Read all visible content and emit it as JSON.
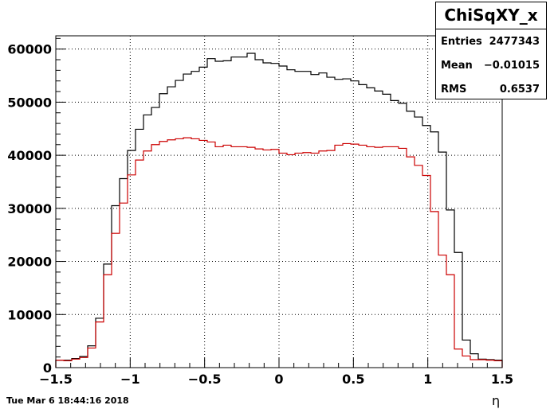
{
  "chart_data": {
    "type": "histogram",
    "title": "ChiSqXY_x",
    "xlabel": "η",
    "ylabel": "",
    "xlim": [
      -1.5,
      1.5
    ],
    "ylim": [
      0,
      62500
    ],
    "grid": true,
    "bin_width": 0.05,
    "x_ticks": [
      "−1.5",
      "−1",
      "−0.5",
      "0",
      "0.5",
      "1",
      "1.5"
    ],
    "x_tick_values": [
      -1.5,
      -1,
      -0.5,
      0,
      0.5,
      1,
      1.5
    ],
    "y_ticks": [
      "0",
      "10000",
      "20000",
      "30000",
      "40000",
      "50000",
      "60000"
    ],
    "y_tick_values": [
      0,
      10000,
      20000,
      30000,
      40000,
      50000,
      60000
    ],
    "series": [
      {
        "color": "#000000",
        "values": [
          1400,
          1400,
          1700,
          2100,
          4100,
          9300,
          19500,
          30500,
          35600,
          40900,
          44900,
          47600,
          49000,
          51600,
          52900,
          54100,
          55300,
          55800,
          56600,
          58200,
          57700,
          57800,
          58500,
          58500,
          59200,
          58000,
          57400,
          57300,
          56800,
          56100,
          55800,
          55800,
          55200,
          55500,
          54700,
          54300,
          54400,
          54000,
          53300,
          52700,
          52100,
          51500,
          50300,
          49800,
          48300,
          47200,
          45600,
          44400,
          40600,
          29700,
          21700,
          5200,
          2600,
          1600,
          1500,
          1400
        ]
      },
      {
        "color": "#cc0000",
        "values": [
          1400,
          1300,
          1600,
          1900,
          3700,
          8600,
          17500,
          25300,
          31000,
          36300,
          39100,
          40800,
          42000,
          42600,
          42900,
          43100,
          43300,
          43100,
          42800,
          42500,
          41600,
          41900,
          41600,
          41600,
          41500,
          41200,
          41000,
          41100,
          40400,
          40100,
          40400,
          40500,
          40400,
          40800,
          40900,
          41900,
          42200,
          42100,
          41900,
          41600,
          41500,
          41600,
          41600,
          41300,
          39700,
          38100,
          36200,
          29400,
          21200,
          17500,
          3500,
          2200,
          1500,
          1500,
          1400,
          1300
        ]
      }
    ]
  },
  "stats": {
    "title": "ChiSqXY_x",
    "entries_label": "Entries",
    "entries_value": "2477343",
    "mean_label": "Mean",
    "mean_value": "−0.01015",
    "rms_label": "RMS",
    "rms_value": "0.6537"
  },
  "footer": {
    "datestamp": "Tue Mar  6 18:44:16 2018",
    "xaxis_label": "η"
  }
}
